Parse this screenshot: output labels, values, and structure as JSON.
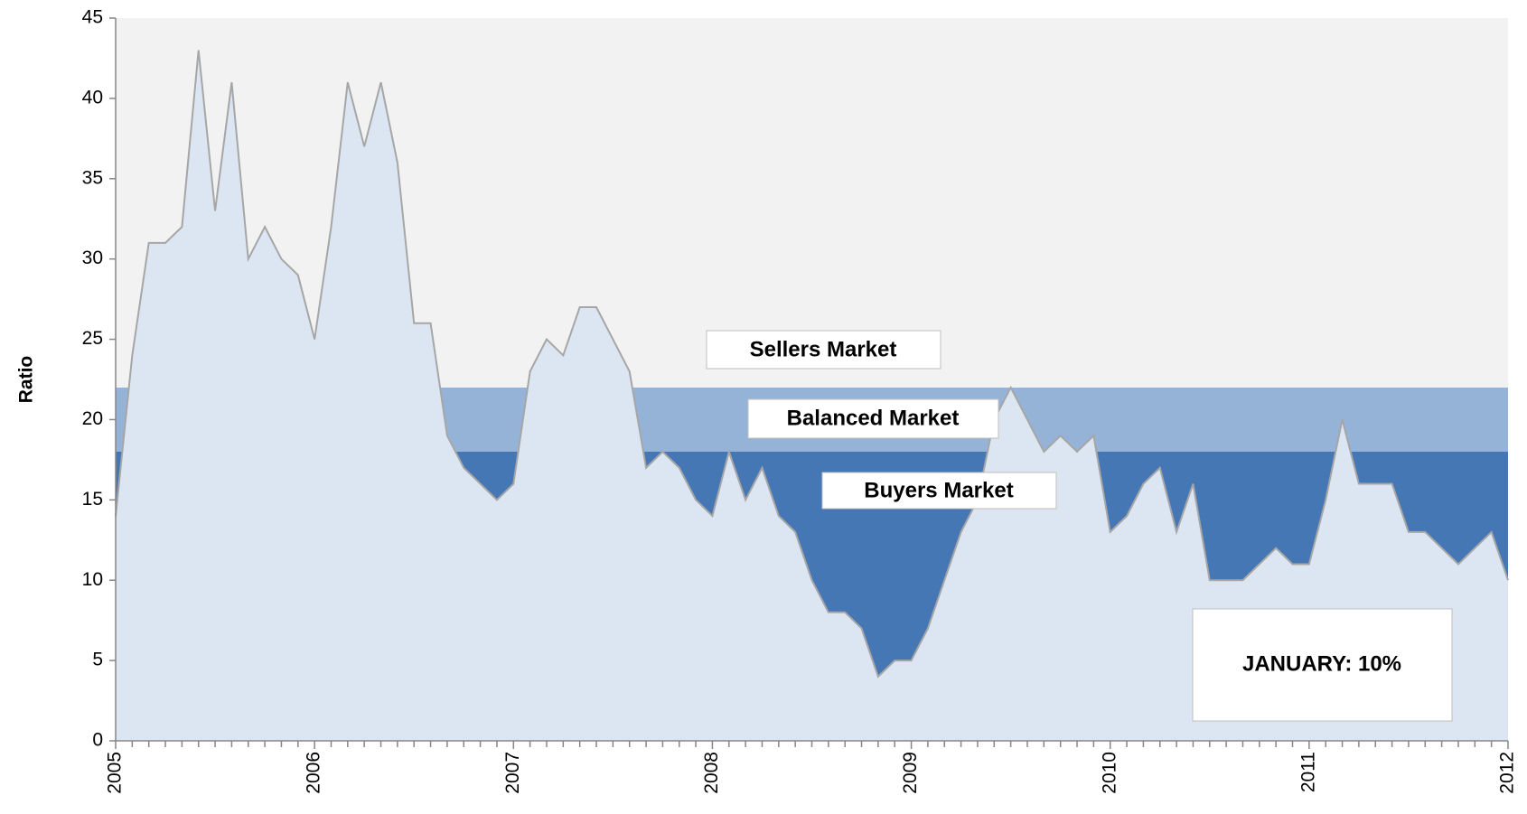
{
  "chart_data": {
    "type": "area",
    "y_label": "Ratio",
    "categories": [
      "2005",
      null,
      null,
      null,
      null,
      null,
      null,
      null,
      null,
      null,
      null,
      null,
      "2006",
      null,
      null,
      null,
      null,
      null,
      null,
      null,
      null,
      null,
      null,
      null,
      "2007",
      null,
      null,
      null,
      null,
      null,
      null,
      null,
      null,
      null,
      null,
      null,
      "2008",
      null,
      null,
      null,
      null,
      null,
      null,
      null,
      null,
      null,
      null,
      null,
      "2009",
      null,
      null,
      null,
      null,
      null,
      null,
      null,
      null,
      null,
      null,
      null,
      "2010",
      null,
      null,
      null,
      null,
      null,
      null,
      null,
      null,
      null,
      null,
      null,
      "2011",
      null,
      null,
      null,
      null,
      null,
      null,
      null,
      null,
      null,
      null,
      null,
      "2012"
    ],
    "values": [
      14,
      24,
      31,
      31,
      32,
      43,
      33,
      41,
      30,
      32,
      30,
      29,
      25,
      32,
      41,
      37,
      41,
      36,
      26,
      26,
      19,
      17,
      16,
      15,
      16,
      23,
      25,
      24,
      27,
      27,
      25,
      23,
      17,
      18,
      17,
      15,
      14,
      18,
      15,
      17,
      14,
      13,
      10,
      8,
      8,
      7,
      4,
      5,
      5,
      7,
      10,
      13,
      15,
      20,
      22,
      20,
      18,
      19,
      18,
      19,
      13,
      14,
      16,
      17,
      13,
      16,
      10,
      10,
      10,
      11,
      12,
      11,
      11,
      15,
      20,
      16,
      16,
      16,
      13,
      13,
      12,
      11,
      12,
      13,
      10
    ],
    "color": "#dce6f2",
    "line_color": "#a6a6a6",
    "ylim": [
      0,
      45
    ],
    "yticks": [
      0,
      5,
      10,
      15,
      20,
      25,
      30,
      35,
      40,
      45
    ],
    "bands": [
      {
        "name": "Buyers Market",
        "from": 0,
        "to": 18,
        "color": "#4677b5"
      },
      {
        "name": "Balanced Market",
        "from": 18,
        "to": 22,
        "color": "#95b3d7"
      },
      {
        "name": "Sellers Market",
        "from": 22,
        "to": 45,
        "color": "#f2f2f2"
      }
    ],
    "annotation": "JANUARY: 10%"
  }
}
